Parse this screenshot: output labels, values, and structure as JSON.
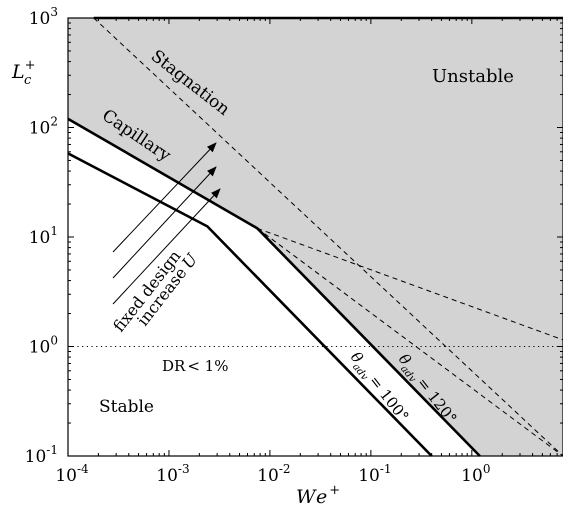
{
  "chart_data": {
    "type": "line",
    "xscale": "log",
    "yscale": "log",
    "xlim": [
      0.0001,
      8
    ],
    "ylim": [
      0.1,
      1000
    ],
    "xlabel": "We+",
    "ylabel": "Lc+",
    "x_ticks": [
      {
        "value": 0.0001,
        "base": "10",
        "exp": "-4"
      },
      {
        "value": 0.001,
        "base": "10",
        "exp": "-3"
      },
      {
        "value": 0.01,
        "base": "10",
        "exp": "-2"
      },
      {
        "value": 0.1,
        "base": "10",
        "exp": "-1"
      },
      {
        "value": 1,
        "base": "10",
        "exp": "0"
      }
    ],
    "y_ticks": [
      {
        "value": 0.1,
        "base": "10",
        "exp": "-1"
      },
      {
        "value": 1,
        "base": "10",
        "exp": "0"
      },
      {
        "value": 10,
        "base": "10",
        "exp": "1"
      },
      {
        "value": 100,
        "base": "10",
        "exp": "2"
      },
      {
        "value": 1000,
        "base": "10",
        "exp": "3"
      }
    ],
    "series": [
      {
        "name": "θadv = 120°",
        "style": "solid-thick",
        "points": [
          [
            0.0001,
            120
          ],
          [
            0.0075,
            12
          ],
          [
            1.2,
            0.1
          ]
        ]
      },
      {
        "name": "θadv = 100°",
        "style": "solid-thick",
        "points": [
          [
            0.0001,
            58
          ],
          [
            0.0024,
            12.5
          ],
          [
            0.4,
            0.1
          ]
        ]
      },
      {
        "name": "Stagnation",
        "style": "dashed",
        "points": [
          [
            0.00018,
            1000
          ],
          [
            8,
            0.1
          ]
        ]
      },
      {
        "name": "",
        "style": "dashed",
        "points": [
          [
            0.0075,
            12
          ],
          [
            8,
            1.15
          ]
        ]
      },
      {
        "name": "",
        "style": "dashed",
        "points": [
          [
            0.0075,
            12
          ],
          [
            8,
            0.1
          ]
        ]
      },
      {
        "name": "DR < 1%",
        "style": "dotted",
        "points": [
          [
            0.0001,
            1
          ],
          [
            8,
            1
          ]
        ]
      }
    ],
    "unstable_region_color": "#d3d3d3",
    "annotations": {
      "stagnation": "Stagnation",
      "capillary": "Capillary",
      "unstable": "Unstable",
      "stable": "Stable",
      "dr": "DR",
      "dr_value": "< 1%",
      "fixed_design": "fixed design",
      "increase_u": "increase",
      "increase_u_var": "U",
      "theta120_symbol": "θ",
      "theta120_sub": "adv",
      "theta120_value": "= 120°",
      "theta100_symbol": "θ",
      "theta100_sub": "adv",
      "theta100_value": "= 100°"
    },
    "axis_labels": {
      "x_main": "We",
      "x_sup": "+",
      "y_main": "L",
      "y_sub": "c",
      "y_sup": "+"
    },
    "grid": false,
    "legend": "none"
  }
}
